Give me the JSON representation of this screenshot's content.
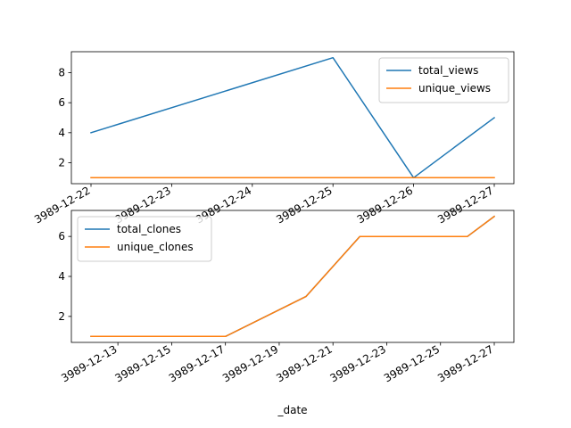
{
  "colors": {
    "series_blue": "#1f77b4",
    "series_orange": "#ff7f0e"
  },
  "chart_data": [
    {
      "type": "line",
      "x": [
        "3989-12-22",
        "3989-12-25",
        "3989-12-26",
        "3989-12-27"
      ],
      "x_tick_labels": [
        "3989-12-22",
        "3989-12-23",
        "3989-12-24",
        "3989-12-25",
        "3989-12-26",
        "3989-12-27"
      ],
      "xlim": [
        "3989-12-22",
        "3989-12-27"
      ],
      "ylim": [
        0.6,
        9.4
      ],
      "y_ticks": [
        2,
        4,
        6,
        8
      ],
      "grid": false,
      "legend": "upper-right",
      "series": [
        {
          "name": "total_views",
          "values": [
            4,
            9,
            1,
            5
          ]
        },
        {
          "name": "unique_views",
          "values": [
            1,
            1,
            1,
            1
          ]
        }
      ]
    },
    {
      "type": "line",
      "x": [
        "3989-12-12",
        "3989-12-17",
        "3989-12-20",
        "3989-12-22",
        "3989-12-26",
        "3989-12-27"
      ],
      "x_tick_labels": [
        "3989-12-13",
        "3989-12-15",
        "3989-12-17",
        "3989-12-19",
        "3989-12-21",
        "3989-12-23",
        "3989-12-25",
        "3989-12-27"
      ],
      "xlim": [
        "3989-12-12",
        "3989-12-27"
      ],
      "ylim": [
        0.7,
        7.3
      ],
      "y_ticks": [
        2,
        4,
        6
      ],
      "xlabel": "_date",
      "grid": false,
      "legend": "upper-left",
      "series": [
        {
          "name": "total_clones",
          "values": [
            1,
            1,
            3,
            6,
            6,
            7
          ]
        },
        {
          "name": "unique_clones",
          "values": [
            1,
            1,
            3,
            6,
            6,
            7
          ]
        }
      ]
    }
  ]
}
